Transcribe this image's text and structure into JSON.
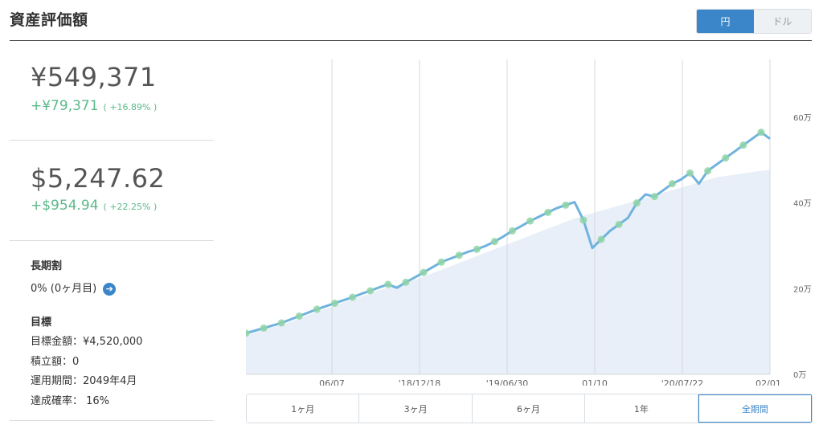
{
  "header": {
    "title": "資産評価額",
    "currency_toggle": [
      {
        "label": "円",
        "active": true
      },
      {
        "label": "ドル",
        "active": false
      }
    ]
  },
  "jpy_summary": {
    "value": "¥549,371",
    "gain": "+¥79,371",
    "gain_pct": "( +16.89% )"
  },
  "usd_summary": {
    "value": "$5,247.62",
    "gain": "+$954.94",
    "gain_pct": "( +22.25% )"
  },
  "long_term": {
    "heading": "長期割",
    "value": "0% (0ヶ月目)"
  },
  "goal": {
    "heading": "目標",
    "amount": "目標金額：¥4,520,000",
    "accumulated": "積立額：0",
    "period": "運用期間：2049年4月",
    "probability": "達成確率： 16%"
  },
  "range_tabs": [
    {
      "label": "1ヶ月",
      "active": false
    },
    {
      "label": "3ヶ月",
      "active": false
    },
    {
      "label": "6ヶ月",
      "active": false
    },
    {
      "label": "1年",
      "active": false
    },
    {
      "label": "全期間",
      "active": true
    }
  ],
  "colors": {
    "accent": "#3a86c8",
    "gain": "#5cb98a",
    "line": "#6fb3de",
    "area": "#e8eff8",
    "dot": "#8fd4a6"
  },
  "chart_data": {
    "type": "line",
    "x_ticks": [
      "06/07",
      "'18/12/18",
      "'19/06/30",
      "01/10",
      "'20/07/22",
      "02/01"
    ],
    "y_ticks": [
      "0万",
      "20万",
      "40万",
      "60万"
    ],
    "ylim": [
      0,
      60
    ],
    "y_unit": "万",
    "series": [
      {
        "values": [
          9.6,
          10.2,
          10.8,
          11.4,
          12.0,
          12.8,
          13.6,
          14.4,
          15.2,
          15.9,
          16.6,
          17.3,
          18.0,
          18.8,
          19.5,
          20.3,
          21.0,
          20.2,
          21.5,
          22.6,
          23.8,
          25.0,
          26.2,
          27.0,
          27.8,
          28.6,
          29.2,
          30.0,
          31.0,
          32.2,
          33.5,
          34.6,
          35.8,
          36.8,
          37.8,
          38.8,
          39.5,
          40.2,
          36.0,
          29.5,
          31.5,
          33.5,
          35.0,
          36.5,
          40.0,
          42.0,
          41.5,
          43.0,
          44.5,
          45.5,
          47.0,
          44.5,
          47.5,
          49.0,
          50.5,
          52.0,
          53.5,
          55.0,
          56.5,
          55.0
        ]
      },
      {
        "values": [
          9.6,
          10.0,
          10.5,
          11.0,
          11.5,
          12.2,
          13.0,
          13.8,
          14.6,
          15.3,
          16.0,
          16.8,
          17.5,
          18.2,
          18.9,
          19.6,
          20.3,
          20.8,
          21.4,
          22.0,
          22.8,
          23.6,
          24.4,
          25.2,
          26.0,
          26.8,
          27.6,
          28.4,
          29.2,
          30.0,
          30.8,
          31.6,
          32.4,
          33.2,
          34.0,
          34.8,
          35.6,
          36.4,
          37.0,
          37.6,
          38.2,
          38.8,
          39.4,
          40.0,
          40.6,
          41.2,
          41.8,
          42.4,
          43.0,
          43.6,
          44.2,
          44.8,
          45.4,
          46.0,
          46.3,
          46.6,
          46.9,
          47.2,
          47.5,
          47.7
        ]
      }
    ]
  }
}
